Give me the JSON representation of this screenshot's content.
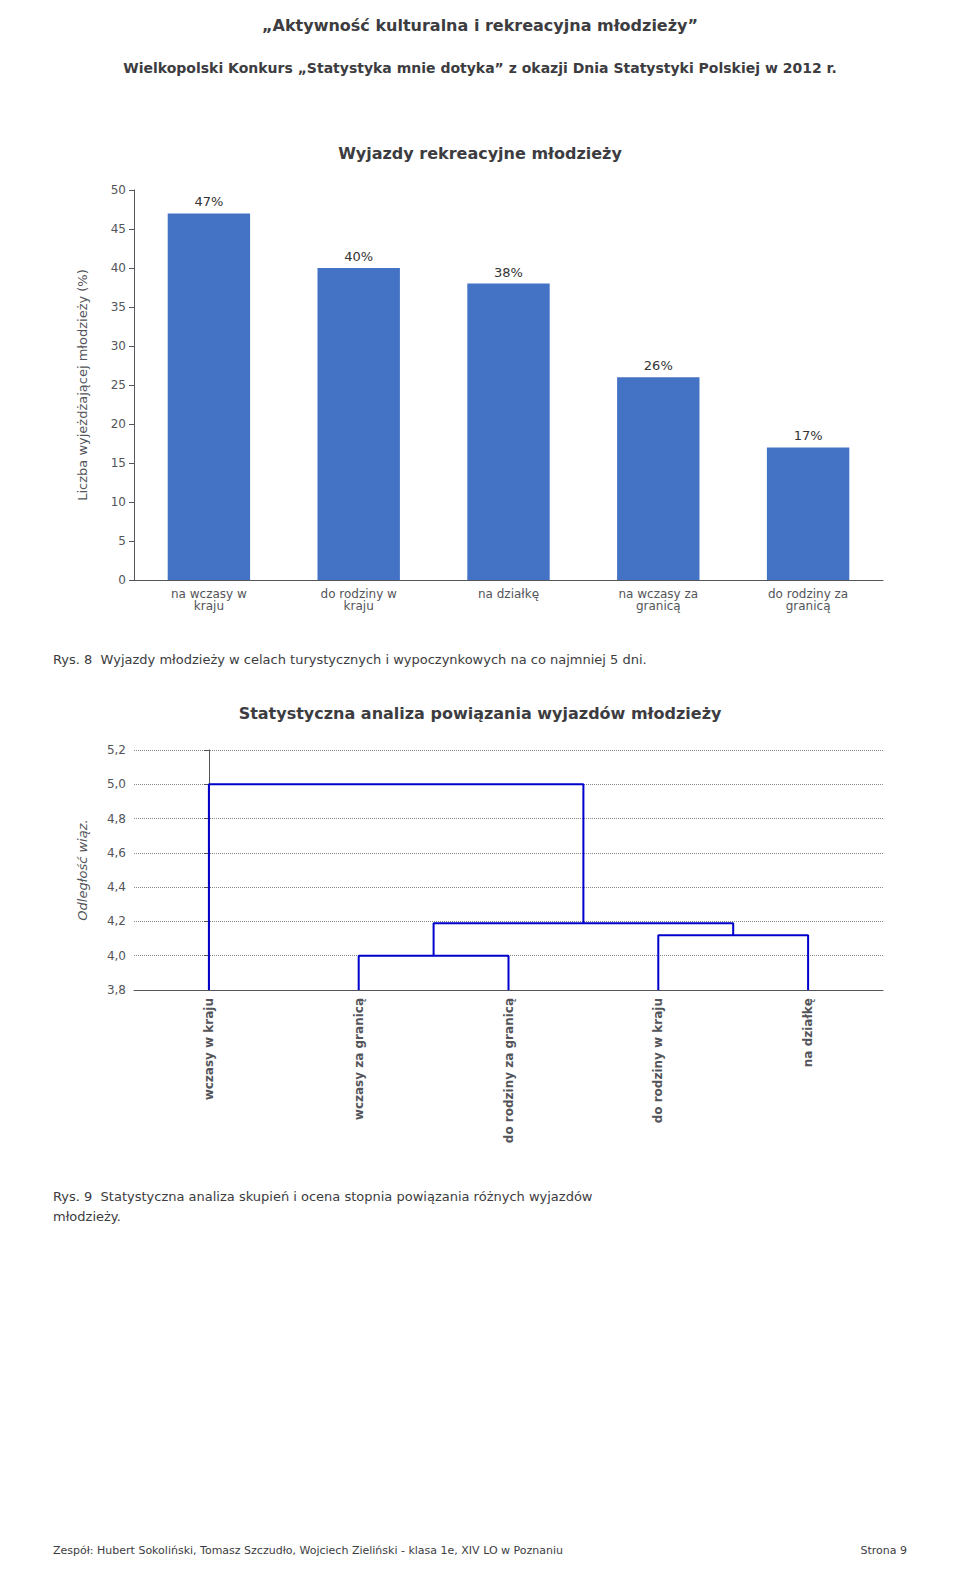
{
  "header": [
    "„Aktywność kulturalna i rekreacyjna młodzieży”",
    "Wielkopolski Konkurs „Statystyka mnie dotyka” z okazji Dnia Statystyki Polskiej w 2012 r."
  ],
  "footer": [
    "Zespół: Hubert Sokoliński, Tomasz Szczudło, Wojciech Zieliński - klasa 1e, XIV LO w Poznaniu",
    "Strona 9"
  ],
  "chart_data": [
    {
      "type": "bar",
      "title": "Wyjazdy rekreacyjne młodzieży",
      "categories": [
        "na wczasy w\nkraju",
        "do rodziny w\nkraju",
        "na działkę",
        "na wczasy za\ngranicą",
        "do rodziny za\ngranicą"
      ],
      "values": [
        47,
        40,
        38,
        26,
        17
      ],
      "value_labels": [
        "47%",
        "40%",
        "38%",
        "26%",
        "17%"
      ],
      "data_labels": true,
      "color": "#4472c4",
      "ylabel": "Liczba wyjeżdżającej młodzieży (%)",
      "ylim": [
        0,
        50
      ],
      "yticks": [
        0,
        5,
        10,
        15,
        20,
        25,
        30,
        35,
        40,
        45,
        50
      ],
      "grid": false,
      "caption": [
        "Rys. 8  Wyjazdy młodzieży w celach turystycznych i wypoczynkowych na co najmniej 5 dni."
      ]
    },
    {
      "type": "dendrogram",
      "title": "Statystyczna analiza powiązania wyjazdów młodzieży",
      "categories": [
        "wczasy w kraju",
        "wczasy za granicą",
        "do rodziny za granicą",
        "do rodziny w kraju",
        "na działkę"
      ],
      "merges": [
        {
          "left": [
            "wczasy za granicą"
          ],
          "right": [
            "do rodziny za granicą"
          ],
          "height": 4.0
        },
        {
          "left": [
            "do rodziny w kraju"
          ],
          "right": [
            "na działkę"
          ],
          "height": 4.12
        },
        {
          "left": [
            "wczasy za granicą",
            "do rodziny za granicą"
          ],
          "right": [
            "do rodziny w kraju",
            "na działkę"
          ],
          "height": 4.19
        },
        {
          "left": [
            "wczasy w kraju"
          ],
          "right": [
            "wczasy za granicą",
            "do rodziny za granicą",
            "do rodziny w kraju",
            "na działkę"
          ],
          "height": 5.0
        }
      ],
      "color": "#0000cc",
      "ylabel": "Odległość wiąz.",
      "ylim": [
        3.8,
        5.2
      ],
      "yticks": [
        {
          "value": 3.8,
          "label": "3,8"
        },
        {
          "value": 4.0,
          "label": "4,0"
        },
        {
          "value": 4.2,
          "label": "4,2"
        },
        {
          "value": 4.4,
          "label": "4,4"
        },
        {
          "value": 4.6,
          "label": "4,6"
        },
        {
          "value": 4.8,
          "label": "4,8"
        },
        {
          "value": 5.0,
          "label": "5,0"
        },
        {
          "value": 5.2,
          "label": "5,2"
        }
      ],
      "grid": true,
      "caption": [
        "Rys. 9  Statystyczna analiza skupień i ocena stopnia powiązania różnych wyjazdów",
        "młodzieży."
      ]
    }
  ]
}
